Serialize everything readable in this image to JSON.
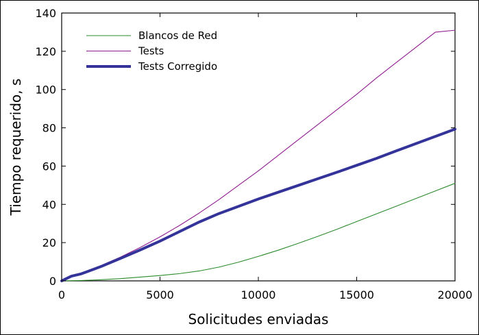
{
  "chart_data": {
    "type": "line",
    "title": "",
    "xlabel": "Solicitudes enviadas",
    "ylabel": "Tiempo requerido, s",
    "xlim": [
      0,
      20000
    ],
    "ylim": [
      0,
      140
    ],
    "xticks": [
      0,
      5000,
      10000,
      15000,
      20000
    ],
    "yticks": [
      0,
      20,
      40,
      60,
      80,
      100,
      120,
      140
    ],
    "grid": false,
    "legend_position": "top-left",
    "series": [
      {
        "name": "Blancos de Red",
        "color": "#2a8a2a",
        "line_width": "thin",
        "x": [
          0,
          1000,
          2000,
          3000,
          4000,
          5000,
          6000,
          7000,
          8000,
          9000,
          10000,
          11000,
          12000,
          13000,
          14000,
          15000,
          16000,
          17000,
          18000,
          19000,
          20000
        ],
        "y": [
          0,
          0.2,
          0.6,
          1.2,
          2.0,
          2.8,
          3.8,
          5.2,
          7.2,
          9.8,
          12.8,
          16.0,
          19.5,
          23.2,
          27.0,
          31.0,
          35.0,
          39.0,
          43.0,
          47.0,
          51.0
        ]
      },
      {
        "name": "Tests",
        "color": "#8e1a8e",
        "line_width": "thin",
        "x": [
          0,
          200,
          500,
          800,
          1000,
          2000,
          3000,
          4000,
          5000,
          6000,
          7000,
          8000,
          9000,
          10000,
          11000,
          12000,
          13000,
          14000,
          15000,
          16000,
          17000,
          18000,
          19000,
          20000
        ],
        "y": [
          0,
          1.0,
          2.5,
          3.3,
          3.8,
          8.0,
          12.5,
          17.5,
          23.0,
          29.0,
          35.5,
          42.5,
          50.0,
          57.5,
          65.5,
          73.5,
          81.5,
          89.5,
          97.5,
          106.0,
          114.0,
          122.0,
          130.0,
          131.0
        ]
      },
      {
        "name": "Tests Corregido",
        "color": "#33339a",
        "line_width": "thick",
        "x": [
          0,
          200,
          500,
          800,
          1000,
          2000,
          3000,
          4000,
          5000,
          6000,
          7000,
          8000,
          9000,
          10000,
          11000,
          12000,
          13000,
          14000,
          15000,
          16000,
          17000,
          18000,
          19000,
          20000
        ],
        "y": [
          0,
          1.0,
          2.5,
          3.2,
          3.7,
          7.5,
          11.8,
          16.2,
          20.8,
          25.8,
          30.8,
          35.2,
          39.0,
          42.8,
          46.3,
          49.8,
          53.3,
          56.8,
          60.4,
          64.0,
          67.9,
          71.7,
          75.5,
          79.3
        ]
      }
    ]
  }
}
